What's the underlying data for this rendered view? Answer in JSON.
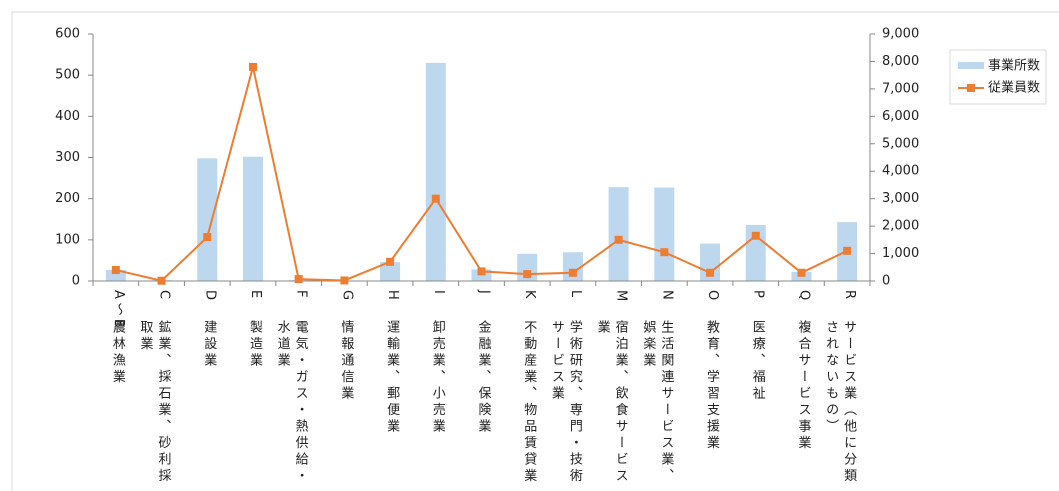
{
  "chart_data": {
    "type": "bar-line",
    "categories": [
      "A～B",
      "C",
      "D",
      "E",
      "F",
      "G",
      "H",
      "I",
      "J",
      "K",
      "L",
      "M",
      "N",
      "O",
      "P",
      "Q",
      "R"
    ],
    "category_descriptions": [
      "農林漁業",
      "鉱業、採石業、砂利採取業",
      "建設業",
      "製造業",
      "電気・ガス・熱供給・水道業",
      "情報通信業",
      "運輸業、郵便業",
      "卸売業、小売業",
      "金融業、保険業",
      "不動産業、物品賃貸業",
      "学術研究、専門・技術サービス業",
      "宿泊業、飲食サービス業",
      "生活関連サービス業、娯楽業",
      "教育、学習支援業",
      "医療、福祉",
      "複合サービス事業",
      "サービス業（他に分類されないもの）"
    ],
    "series": [
      {
        "name": "事業所数",
        "type": "bar",
        "color": "#bdd7ee",
        "values": [
          27,
          2,
          298,
          302,
          2,
          1,
          46,
          530,
          28,
          66,
          70,
          228,
          227,
          91,
          136,
          22,
          143
        ]
      },
      {
        "name": "従業員数",
        "type": "line",
        "axis": "y2",
        "color": "#ed7d31",
        "values": [
          400,
          10,
          1600,
          7800,
          70,
          20,
          700,
          3000,
          350,
          250,
          300,
          1500,
          1050,
          300,
          1650,
          300,
          1100
        ]
      }
    ],
    "ylim": [
      0,
      600
    ],
    "yticks": [
      0,
      100,
      200,
      300,
      400,
      500,
      600
    ],
    "y2lim": [
      0,
      9000
    ],
    "y2ticks": [
      0,
      {
        "value": 1000,
        "label": "1,000"
      },
      {
        "value": 2000,
        "label": "2,000"
      },
      {
        "value": 3000,
        "label": "3,000"
      },
      {
        "value": 4000,
        "label": "4,000"
      },
      {
        "value": 5000,
        "label": "5,000"
      },
      {
        "value": 6000,
        "label": "6,000"
      },
      {
        "value": 7000,
        "label": "7,000"
      },
      {
        "value": 8000,
        "label": "8,000"
      },
      {
        "value": 9000,
        "label": "9,000"
      }
    ],
    "legend": "right"
  }
}
